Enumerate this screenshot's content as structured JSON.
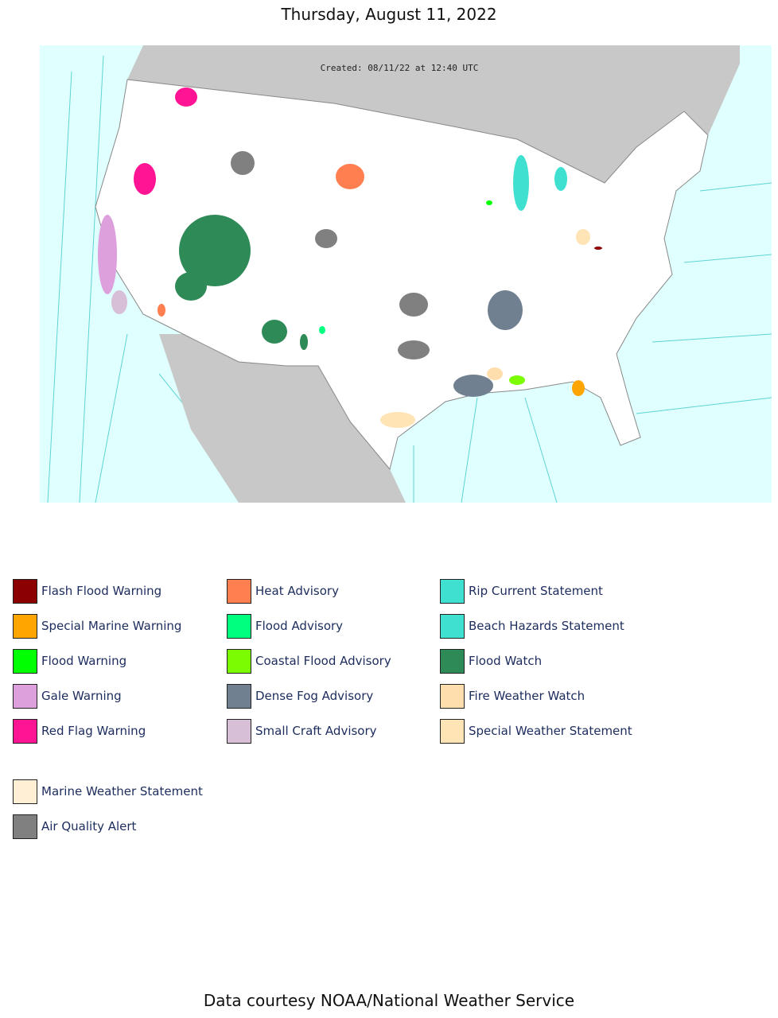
{
  "header": {
    "title": "Thursday, August 11, 2022"
  },
  "map": {
    "created": "Created: 08/11/22 at 12:40 UTC"
  },
  "legend": [
    {
      "label": "Flash Flood Warning",
      "color": "#8b0000"
    },
    {
      "label": "Special Marine Warning",
      "color": "#ffa500"
    },
    {
      "label": "Flood Warning",
      "color": "#00ff00"
    },
    {
      "label": "Gale Warning",
      "color": "#dda0dd"
    },
    {
      "label": "Red Flag Warning",
      "color": "#ff1493"
    },
    {
      "label": "Heat Advisory",
      "color": "#ff7f50"
    },
    {
      "label": "Flood Advisory",
      "color": "#00ff7f"
    },
    {
      "label": "Coastal Flood Advisory",
      "color": "#7cfc00"
    },
    {
      "label": "Dense Fog Advisory",
      "color": "#708090"
    },
    {
      "label": "Small Craft Advisory",
      "color": "#d8bfd8"
    },
    {
      "label": "Rip Current Statement",
      "color": "#40e0d0"
    },
    {
      "label": "Beach Hazards Statement",
      "color": "#40e0d0"
    },
    {
      "label": "Flood Watch",
      "color": "#2e8b57"
    },
    {
      "label": "Fire Weather Watch",
      "color": "#ffdead"
    },
    {
      "label": "Special Weather Statement",
      "color": "#ffe4b5"
    },
    {
      "label": "Marine Weather Statement",
      "color": "#ffefd5"
    },
    {
      "label": "Air Quality Alert",
      "color": "#808080"
    }
  ],
  "footer": {
    "credit": "Data courtesy NOAA/National Weather Service"
  }
}
